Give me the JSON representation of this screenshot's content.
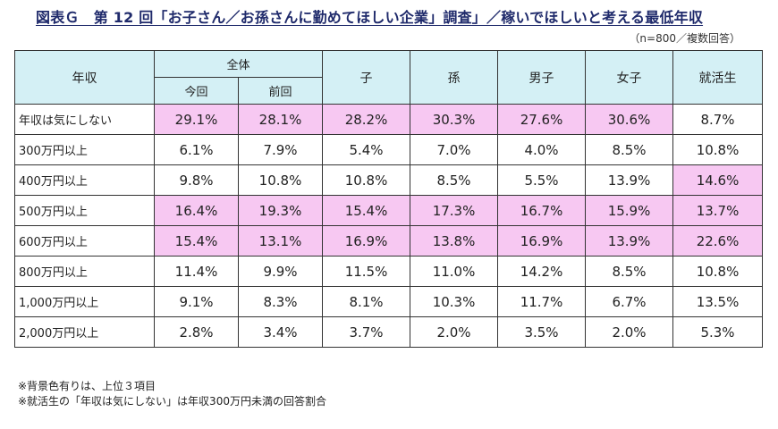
{
  "title": "図表Ｇ　第 12 回「お子さん／お孫さんに勤めてほしい企業」調査」／稼いでほしいと考える最低年収",
  "sample_note": "（n=800／複数回答）",
  "header": {
    "row_header": "年収",
    "group_all": "全体",
    "sub_current": "今回",
    "sub_previous": "前回",
    "col_child": "子",
    "col_grandchild": "孫",
    "col_male": "男子",
    "col_female": "女子",
    "col_jobseeker": "就活生"
  },
  "highlight_color": "#f7c8f2",
  "header_color": "#d4f0f5",
  "chart_data": {
    "type": "table",
    "columns": [
      "全体 今回",
      "全体 前回",
      "子",
      "孫",
      "男子",
      "女子",
      "就活生"
    ],
    "rows": [
      {
        "label": "年収は気にしない",
        "values": [
          "29.1%",
          "28.1%",
          "28.2%",
          "30.3%",
          "27.6%",
          "30.6%",
          "8.7%"
        ],
        "highlight": [
          true,
          true,
          true,
          true,
          true,
          true,
          false
        ]
      },
      {
        "label": "300万円以上",
        "values": [
          "6.1%",
          "7.9%",
          "5.4%",
          "7.0%",
          "4.0%",
          "8.5%",
          "10.8%"
        ],
        "highlight": [
          false,
          false,
          false,
          false,
          false,
          false,
          false
        ]
      },
      {
        "label": "400万円以上",
        "values": [
          "9.8%",
          "10.8%",
          "10.8%",
          "8.5%",
          "5.5%",
          "13.9%",
          "14.6%"
        ],
        "highlight": [
          false,
          false,
          false,
          false,
          false,
          false,
          true
        ]
      },
      {
        "label": "500万円以上",
        "values": [
          "16.4%",
          "19.3%",
          "15.4%",
          "17.3%",
          "16.7%",
          "15.9%",
          "13.7%"
        ],
        "highlight": [
          true,
          true,
          true,
          true,
          true,
          true,
          true
        ]
      },
      {
        "label": "600万円以上",
        "values": [
          "15.4%",
          "13.1%",
          "16.9%",
          "13.8%",
          "16.9%",
          "13.9%",
          "22.6%"
        ],
        "highlight": [
          true,
          true,
          true,
          true,
          true,
          true,
          true
        ]
      },
      {
        "label": "800万円以上",
        "values": [
          "11.4%",
          "9.9%",
          "11.5%",
          "11.0%",
          "14.2%",
          "8.5%",
          "10.8%"
        ],
        "highlight": [
          false,
          false,
          false,
          false,
          false,
          false,
          false
        ]
      },
      {
        "label": "1,000万円以上",
        "values": [
          "9.1%",
          "8.3%",
          "8.1%",
          "10.3%",
          "11.7%",
          "6.7%",
          "13.5%"
        ],
        "highlight": [
          false,
          false,
          false,
          false,
          false,
          false,
          false
        ]
      },
      {
        "label": "2,000万円以上",
        "values": [
          "2.8%",
          "3.4%",
          "3.7%",
          "2.0%",
          "3.5%",
          "2.0%",
          "5.3%"
        ],
        "highlight": [
          false,
          false,
          false,
          false,
          false,
          false,
          false
        ]
      }
    ]
  },
  "footnotes": [
    "※背景色有りは、上位３項目",
    "※就活生の「年収は気にしない」は年収300万円未満の回答割合"
  ]
}
